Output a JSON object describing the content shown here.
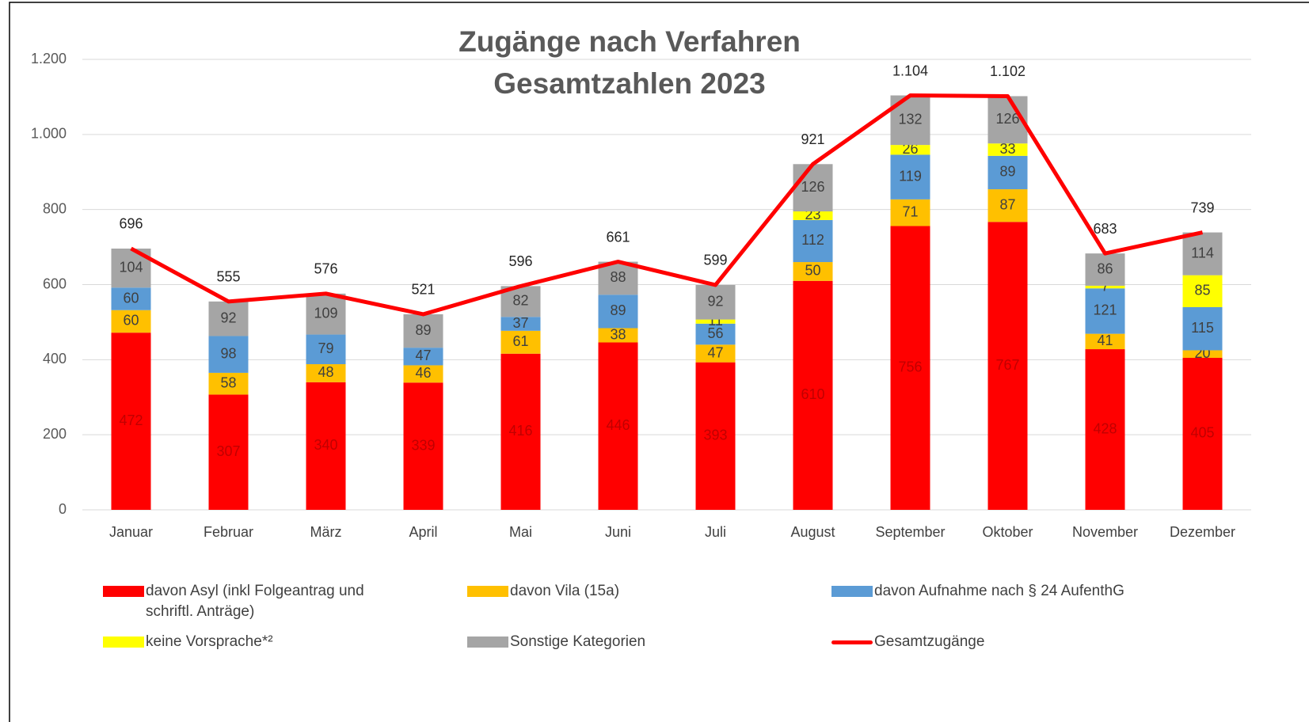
{
  "chart_data": {
    "type": "bar",
    "title": "Zugänge nach Verfahren",
    "subtitle": "Gesamtzahlen 2023",
    "categories": [
      "Januar",
      "Februar",
      "März",
      "April",
      "Mai",
      "Juni",
      "Juli",
      "August",
      "September",
      "Oktober",
      "November",
      "Dezember"
    ],
    "stacked": true,
    "series": [
      {
        "name": "davon Asyl (inkl Folgeantrag und schriftl. Anträge)",
        "color": "#ff0000",
        "label_color": "#c00000",
        "values": [
          472,
          307,
          340,
          339,
          416,
          446,
          393,
          610,
          756,
          767,
          428,
          405
        ]
      },
      {
        "name": "davon Vila (15a)",
        "color": "#ffc000",
        "label_color": "#404040",
        "values": [
          60,
          58,
          48,
          46,
          61,
          38,
          47,
          50,
          71,
          87,
          41,
          20
        ]
      },
      {
        "name": "davon Aufnahme nach § 24 AufenthG",
        "color": "#5b9bd5",
        "label_color": "#404040",
        "values": [
          60,
          98,
          79,
          47,
          37,
          89,
          56,
          112,
          119,
          89,
          121,
          115
        ]
      },
      {
        "name": "keine Vorsprache*²",
        "color": "#ffff00",
        "label_color": "#404040",
        "values": [
          null,
          null,
          null,
          null,
          null,
          null,
          11,
          23,
          26,
          33,
          7,
          85
        ]
      },
      {
        "name": "Sonstige Kategorien",
        "color": "#a5a5a5",
        "label_color": "#404040",
        "values": [
          104,
          92,
          109,
          89,
          82,
          88,
          92,
          126,
          132,
          126,
          86,
          114
        ]
      },
      {
        "name": "Gesamtzugänge",
        "type": "line",
        "color": "#ff0000",
        "label_color": "#262626",
        "values": [
          696,
          555,
          576,
          521,
          596,
          661,
          599,
          921,
          1104,
          1102,
          683,
          739
        ],
        "value_labels": [
          "696",
          "555",
          "576",
          "521",
          "596",
          "661",
          "599",
          "921",
          "1.104",
          "1.102",
          "683",
          "739"
        ]
      }
    ],
    "ylim": [
      0,
      1200
    ],
    "yticks": [
      0,
      200,
      400,
      600,
      800,
      {
        "value": 1000,
        "label": "1.000"
      },
      {
        "value": 1200,
        "label": "1.200"
      }
    ],
    "grid": true,
    "legend": "bottom"
  }
}
